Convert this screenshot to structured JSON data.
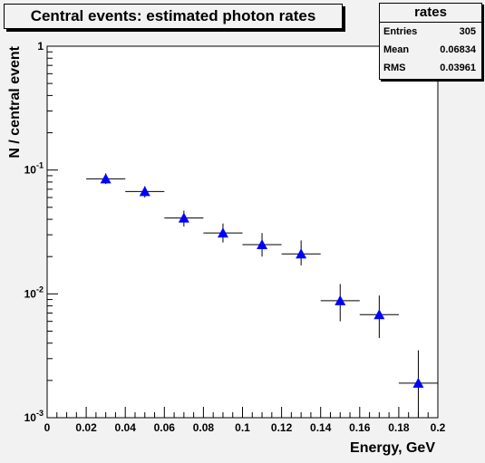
{
  "chart_data": {
    "type": "scatter",
    "title": "Central events: estimated photon rates",
    "xlabel": "Energy, GeV",
    "ylabel": "N / central event",
    "xlim": [
      0,
      0.2
    ],
    "ylim": [
      0.001,
      1
    ],
    "yscale": "log",
    "x_ticks": [
      "0",
      "0.02",
      "0.04",
      "0.06",
      "0.08",
      "0.1",
      "0.12",
      "0.14",
      "0.16",
      "0.18",
      "0.2"
    ],
    "y_ticks": [
      {
        "base": "10",
        "exp": "-3"
      },
      {
        "base": "10",
        "exp": "-2"
      },
      {
        "base": "10",
        "exp": "-1"
      },
      {
        "base": "1",
        "exp": ""
      }
    ],
    "grid": false,
    "marker_color": "#0000ff",
    "points": [
      {
        "x": 0.03,
        "xerr": 0.01,
        "y": 0.085,
        "ylow": 0.077,
        "yhigh": 0.094
      },
      {
        "x": 0.05,
        "xerr": 0.01,
        "y": 0.067,
        "ylow": 0.06,
        "yhigh": 0.074
      },
      {
        "x": 0.07,
        "xerr": 0.01,
        "y": 0.041,
        "ylow": 0.035,
        "yhigh": 0.047
      },
      {
        "x": 0.09,
        "xerr": 0.01,
        "y": 0.031,
        "ylow": 0.026,
        "yhigh": 0.037
      },
      {
        "x": 0.11,
        "xerr": 0.01,
        "y": 0.025,
        "ylow": 0.02,
        "yhigh": 0.031
      },
      {
        "x": 0.13,
        "xerr": 0.01,
        "y": 0.021,
        "ylow": 0.017,
        "yhigh": 0.027
      },
      {
        "x": 0.15,
        "xerr": 0.01,
        "y": 0.0088,
        "ylow": 0.006,
        "yhigh": 0.012
      },
      {
        "x": 0.17,
        "xerr": 0.01,
        "y": 0.0068,
        "ylow": 0.0044,
        "yhigh": 0.0097
      },
      {
        "x": 0.19,
        "xerr": 0.01,
        "y": 0.0019,
        "ylow": 0.001,
        "yhigh": 0.0035
      }
    ]
  },
  "stats": {
    "title": "rates",
    "rows": [
      {
        "label": "Entries",
        "value": "305"
      },
      {
        "label": "Mean",
        "value": "0.06834"
      },
      {
        "label": "RMS",
        "value": "0.03961"
      }
    ]
  }
}
